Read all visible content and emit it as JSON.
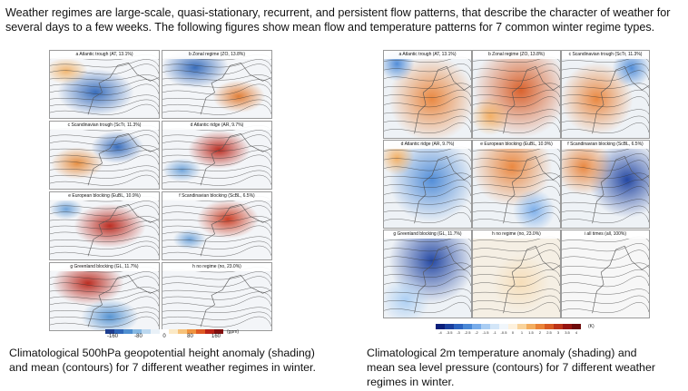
{
  "intro_text": "Weather regimes are large-scale, quasi-stationary, recurrent, and persistent flow patterns, that describe the character of weather for several days to a few weeks. The following figures show mean flow and temperature patterns for 7 common winter regime types.",
  "left_figure": {
    "panels": [
      {
        "title": "a Atlantic trough (AT, 13.1%)",
        "anomaly": "trough-south"
      },
      {
        "title": "b Zonal regime (ZO, 13.8%)",
        "anomaly": "zonal"
      },
      {
        "title": "c Scandinavian trough (ScTr, 11.3%)",
        "anomaly": "sctr"
      },
      {
        "title": "d Atlantic ridge (AR, 9.7%)",
        "anomaly": "ridge"
      },
      {
        "title": "e European blocking (EuBL, 10.9%)",
        "anomaly": "eubl"
      },
      {
        "title": "f Scandinavian blocking (ScBL, 6.5%)",
        "anomaly": "scbl"
      },
      {
        "title": "g Greenland blocking (GL, 11.7%)",
        "anomaly": "gl"
      },
      {
        "title": "h no regime (no, 23.0%)",
        "anomaly": "none"
      }
    ],
    "colorbar_ticks": [
      "-160",
      "-80",
      "0",
      "80",
      "160"
    ],
    "colorbar_unit": "(gpm)",
    "colorbar_colors": [
      "#1f3f8f",
      "#2f66b8",
      "#4f8fd0",
      "#86b8e2",
      "#bcd8ef",
      "#e9f1f8",
      "#ffffff",
      "#fbe9c6",
      "#f6c27a",
      "#ef9440",
      "#df5a24",
      "#b82317",
      "#82100f"
    ]
  },
  "right_figure": {
    "panels": [
      {
        "title": "a Atlantic trough (AT, 13.1%)",
        "anomaly": "warm"
      },
      {
        "title": "b Zonal regime (ZO, 13.8%)",
        "anomaly": "hot"
      },
      {
        "title": "c Scandinavian trough (ScTr, 11.3%)",
        "anomaly": "mixed-warm"
      },
      {
        "title": "d Atlantic ridge (AR, 9.7%)",
        "anomaly": "cool"
      },
      {
        "title": "e European blocking (EuBL, 10.9%)",
        "anomaly": "warm-north"
      },
      {
        "title": "f Scandinavian blocking (ScBL, 6.5%)",
        "anomaly": "cold-east"
      },
      {
        "title": "g Greenland blocking (GL, 11.7%)",
        "anomaly": "cold"
      },
      {
        "title": "h no regime (no, 23.0%)",
        "anomaly": "neutral"
      },
      {
        "title": "i all times (all, 100%)",
        "anomaly": "blank"
      }
    ],
    "colorbar_ticks": [
      "-4",
      "-3.5",
      "-3",
      "-2.5",
      "-2",
      "-1.5",
      "-1",
      "-0.5",
      "0",
      "1",
      "1.5",
      "2",
      "2.5",
      "3",
      "3.5",
      "4"
    ],
    "colorbar_unit": "(K)",
    "colorbar_colors": [
      "#0b1f7a",
      "#1a3f9e",
      "#2c63c0",
      "#4a88d6",
      "#78acea",
      "#a9cdf3",
      "#d3e6f8",
      "#f0f6fb",
      "#fdf1dd",
      "#f9d39b",
      "#f3ad5f",
      "#ea8338",
      "#d85a22",
      "#bc3318",
      "#951410",
      "#6e0b0b"
    ]
  },
  "captions": {
    "left": "Climatological 500hPa geopotential height anomaly (shading) and mean (contours) for 7 different weather regimes in winter.",
    "right": "Climatological 2m temperature anomaly (shading) and mean sea level pressure (contours) for 7 different weather regimes in winter."
  }
}
